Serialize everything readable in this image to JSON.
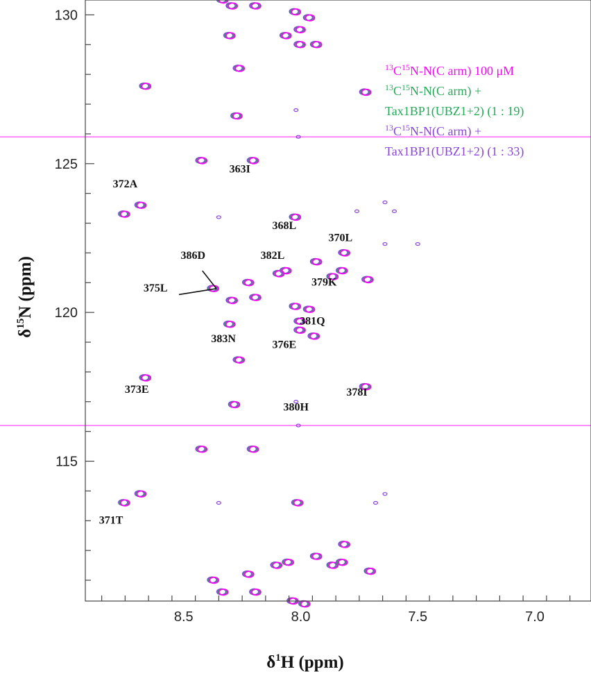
{
  "chart_data": {
    "type": "scatter",
    "title": "",
    "xlabel_parts": [
      "δ",
      "1",
      "H (ppm)"
    ],
    "ylabel_parts": [
      "δ",
      "15",
      "N (ppm)"
    ],
    "xlim": [
      8.92,
      6.76
    ],
    "ylim": [
      130.5,
      110.3
    ],
    "x_ticks": [
      8.5,
      8.0,
      7.5,
      7.0
    ],
    "x_tick_labels": [
      "8.5",
      "8.0",
      "7.5",
      "7.0"
    ],
    "y_ticks": [
      115,
      120,
      125,
      130
    ],
    "y_tick_labels": [
      "115",
      "120",
      "125",
      "130"
    ],
    "horizontal_lines": [
      116.2,
      125.9
    ],
    "series": [
      {
        "name_parts": [
          "13",
          "C",
          "15",
          "N-N(C arm) 100 μM"
        ],
        "color": "#ff00ff"
      },
      {
        "name_parts": [
          "13",
          "C",
          "15",
          "N-N(C arm) + Tax1BP1(UBZ1+2) (1 : 19)"
        ],
        "color": "#22aa55"
      },
      {
        "name_parts": [
          "13",
          "C",
          "15",
          "N-N(C arm) + Tax1BP1(UBZ1+2) (1 : 33)"
        ],
        "color": "#8844dd"
      }
    ],
    "legend": [
      {
        "series": 0,
        "sup1": "13",
        "t1": "C",
        "sup2": "15",
        "t2": "N-N(C arm) 100 μM"
      },
      {
        "series": 1,
        "sup1": "13",
        "t1": "C",
        "sup2": "15",
        "t2": "N-N(C arm) +"
      },
      {
        "series": 1,
        "sup1": "",
        "t1": "",
        "sup2": "",
        "t2": "Tax1BP1(UBZ1+2) (1 : 19)"
      },
      {
        "series": 2,
        "sup1": "13",
        "t1": "C",
        "sup2": "15",
        "t2": "N-N(C arm) +"
      },
      {
        "series": 2,
        "sup1": "",
        "t1": "",
        "sup2": "",
        "t2": "Tax1BP1(UBZ1+2) (1 : 33)"
      }
    ],
    "legend_position": "top-right",
    "peaks": [
      {
        "h": 8.33,
        "n": 110.6
      },
      {
        "h": 8.19,
        "n": 110.6
      },
      {
        "h": 8.03,
        "n": 110.3
      },
      {
        "h": 7.98,
        "n": 110.2
      },
      {
        "h": 8.37,
        "n": 111.0
      },
      {
        "h": 8.22,
        "n": 111.2
      },
      {
        "h": 8.1,
        "n": 111.5
      },
      {
        "h": 8.05,
        "n": 111.6
      },
      {
        "h": 7.86,
        "n": 111.5
      },
      {
        "h": 7.82,
        "n": 111.6
      },
      {
        "h": 7.7,
        "n": 111.3
      },
      {
        "h": 7.93,
        "n": 111.8
      },
      {
        "h": 7.81,
        "n": 112.2
      },
      {
        "h": 8.75,
        "n": 113.6
      },
      {
        "h": 8.68,
        "n": 113.9
      },
      {
        "h": 8.01,
        "n": 113.6
      },
      {
        "h": 8.42,
        "n": 115.4
      },
      {
        "h": 8.2,
        "n": 115.4
      },
      {
        "h": 8.28,
        "n": 116.9
      },
      {
        "h": 7.72,
        "n": 117.5
      },
      {
        "h": 8.66,
        "n": 117.8
      },
      {
        "h": 8.26,
        "n": 118.4
      },
      {
        "h": 7.94,
        "n": 119.2
      },
      {
        "h": 8.0,
        "n": 119.4
      },
      {
        "h": 8.3,
        "n": 119.6
      },
      {
        "h": 8.0,
        "n": 119.7
      },
      {
        "h": 8.29,
        "n": 120.4
      },
      {
        "h": 8.19,
        "n": 120.5
      },
      {
        "h": 8.02,
        "n": 120.2
      },
      {
        "h": 7.96,
        "n": 120.1
      },
      {
        "h": 8.37,
        "n": 120.8
      },
      {
        "h": 8.22,
        "n": 121.0
      },
      {
        "h": 8.09,
        "n": 121.3
      },
      {
        "h": 8.06,
        "n": 121.4
      },
      {
        "h": 7.93,
        "n": 121.7
      },
      {
        "h": 7.86,
        "n": 121.2
      },
      {
        "h": 7.82,
        "n": 121.4
      },
      {
        "h": 7.71,
        "n": 121.1
      },
      {
        "h": 7.81,
        "n": 122.0
      },
      {
        "h": 8.02,
        "n": 123.2
      },
      {
        "h": 8.75,
        "n": 123.3
      },
      {
        "h": 8.68,
        "n": 123.6
      },
      {
        "h": 8.42,
        "n": 125.1
      },
      {
        "h": 8.2,
        "n": 125.1
      },
      {
        "h": 8.27,
        "n": 126.6
      },
      {
        "h": 7.72,
        "n": 127.4
      },
      {
        "h": 8.66,
        "n": 127.6
      },
      {
        "h": 8.26,
        "n": 128.2
      },
      {
        "h": 8.0,
        "n": 129.0
      },
      {
        "h": 7.93,
        "n": 129.0
      },
      {
        "h": 8.3,
        "n": 129.3
      },
      {
        "h": 8.06,
        "n": 129.3
      },
      {
        "h": 8.0,
        "n": 129.5
      },
      {
        "h": 7.96,
        "n": 129.9
      },
      {
        "h": 8.02,
        "n": 130.1
      },
      {
        "h": 8.29,
        "n": 130.3
      },
      {
        "h": 8.19,
        "n": 130.3
      },
      {
        "h": 8.33,
        "n": 130.5
      }
    ],
    "small_peaks": [
      {
        "h": 8.35,
        "n": 113.6
      },
      {
        "h": 8.01,
        "n": 116.2
      },
      {
        "h": 8.02,
        "n": 117.0
      },
      {
        "h": 7.68,
        "n": 113.6
      },
      {
        "h": 7.64,
        "n": 113.9
      },
      {
        "h": 7.64,
        "n": 122.3
      },
      {
        "h": 7.5,
        "n": 122.3
      },
      {
        "h": 7.76,
        "n": 123.4
      },
      {
        "h": 7.6,
        "n": 123.4
      },
      {
        "h": 7.64,
        "n": 123.7
      },
      {
        "h": 8.35,
        "n": 123.2
      },
      {
        "h": 8.01,
        "n": 125.9
      },
      {
        "h": 8.02,
        "n": 126.8
      }
    ],
    "annotations": [
      {
        "text": "371T",
        "h": 8.81,
        "n": 112.9
      },
      {
        "text": "373E",
        "h": 8.7,
        "n": 117.3
      },
      {
        "text": "383N",
        "h": 8.33,
        "n": 119.0
      },
      {
        "text": "380H",
        "h": 8.02,
        "n": 116.7
      },
      {
        "text": "378I",
        "h": 7.76,
        "n": 117.2
      },
      {
        "text": "376E",
        "h": 8.07,
        "n": 118.8
      },
      {
        "text": "381Q",
        "h": 7.95,
        "n": 119.6
      },
      {
        "text": "375L",
        "h": 8.62,
        "n": 120.7
      },
      {
        "text": "386D",
        "h": 8.46,
        "n": 121.8
      },
      {
        "text": "379K",
        "h": 7.9,
        "n": 120.9
      },
      {
        "text": "382L",
        "h": 8.12,
        "n": 121.8
      },
      {
        "text": "370L",
        "h": 7.83,
        "n": 122.4
      },
      {
        "text": "368L",
        "h": 8.07,
        "n": 122.8
      },
      {
        "text": "372A",
        "h": 8.75,
        "n": 124.2
      },
      {
        "text": "363I",
        "h": 8.26,
        "n": 124.7
      }
    ],
    "leaders": [
      {
        "from": [
          8.52,
          120.6
        ],
        "to": [
          8.36,
          120.8
        ]
      },
      {
        "from": [
          8.42,
          121.4
        ],
        "to": [
          8.36,
          120.8
        ]
      }
    ]
  }
}
